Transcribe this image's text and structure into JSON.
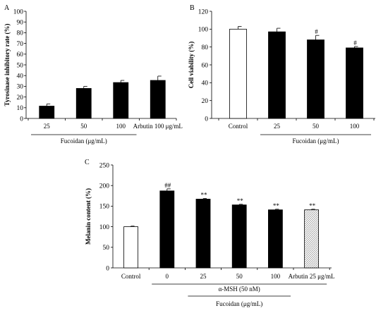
{
  "chart_data": [
    {
      "panel": "A",
      "type": "bar",
      "ylabel": "Tyrosinase inhibitory rate (%)",
      "ylim": [
        0,
        100
      ],
      "yticks": [
        0,
        10,
        20,
        30,
        40,
        50,
        60,
        70,
        80,
        90,
        100
      ],
      "categories": [
        "25",
        "50",
        "100",
        "Arbutin 100 μg/mL"
      ],
      "values": [
        11.5,
        28,
        33.5,
        35.5
      ],
      "errors": [
        2,
        2,
        2,
        4
      ],
      "bar_fills": [
        "black",
        "black",
        "black",
        "black"
      ],
      "annotations": [
        "",
        "",
        "",
        ""
      ],
      "group_label": "Fucoidan (μg/mL)",
      "group_span": [
        0,
        2
      ]
    },
    {
      "panel": "B",
      "type": "bar",
      "ylabel": "Cell viability (%)",
      "ylim": [
        0,
        120
      ],
      "yticks": [
        0,
        20,
        40,
        60,
        80,
        100,
        120
      ],
      "categories": [
        "Control",
        "25",
        "50",
        "100"
      ],
      "values": [
        100,
        97,
        88,
        79
      ],
      "errors": [
        3,
        4,
        5,
        1.5
      ],
      "bar_fills": [
        "white",
        "black",
        "black",
        "black"
      ],
      "annotations": [
        "",
        "",
        "#",
        "#"
      ],
      "group_label": "Fucoidan (μg/mL)",
      "group_span": [
        1,
        3
      ]
    },
    {
      "panel": "C",
      "type": "bar",
      "ylabel": "Melanin content (%)",
      "ylim": [
        0,
        250
      ],
      "yticks": [
        0,
        50,
        100,
        150,
        200,
        250
      ],
      "categories": [
        "Control",
        "0",
        "25",
        "50",
        "100",
        "Arbutin 25 μg/mL"
      ],
      "values": [
        100,
        187,
        167,
        153,
        141,
        141
      ],
      "errors": [
        1.5,
        5,
        1.5,
        1.5,
        1.5,
        1.5
      ],
      "bar_fills": [
        "white",
        "black",
        "black",
        "black",
        "black",
        "hatched"
      ],
      "annotations": [
        "",
        "##",
        "**",
        "**",
        "**",
        "**"
      ],
      "group_label": "α-MSH (50 nM)",
      "group_span": [
        1,
        5
      ],
      "sub_group_label": "Fucoidan (μg/mL)",
      "sub_group_span": [
        2,
        4
      ]
    }
  ]
}
